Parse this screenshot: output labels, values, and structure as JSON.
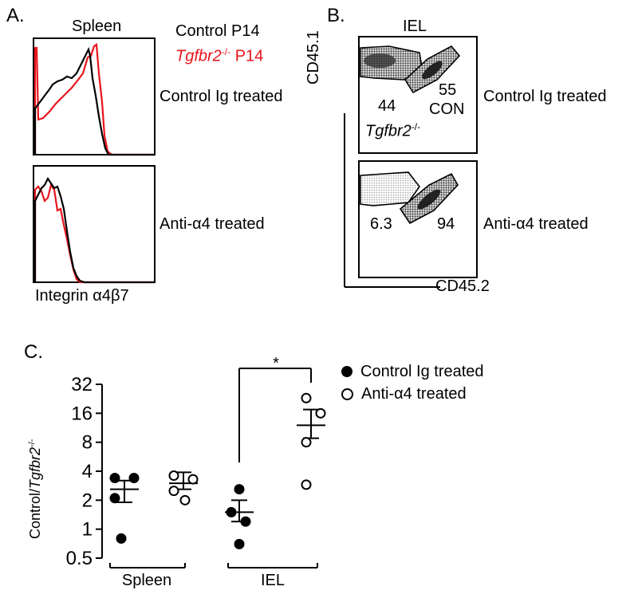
{
  "panel_a": {
    "letter": "A.",
    "title": "Spleen",
    "legend_control": "Control P14",
    "legend_ko_gene": "Tgfbr2",
    "legend_ko_sup": "-/-",
    "legend_ko_suffix": " P14",
    "row1_label": "Control Ig treated",
    "row2_label": "Anti-α4 treated",
    "xlabel": "Integrin α4β7",
    "colors": {
      "control": "#000000",
      "ko": "#e8141b"
    }
  },
  "panel_b": {
    "letter": "B.",
    "title": "IEL",
    "ylabel": "CD45.1",
    "xlabel": "CD45.2",
    "top": {
      "ko_pct": "44",
      "con_pct": "55",
      "con_label": "CON",
      "ko_gene": "Tgfbr2",
      "ko_sup": "-/-",
      "row_label": "Control Ig treated"
    },
    "bottom": {
      "ko_pct": "6.3",
      "con_pct": "94",
      "row_label": "Anti-α4 treated"
    }
  },
  "panel_c": {
    "letter": "C.",
    "ylabel_prefix": "Control/",
    "ylabel_gene": "Tgfbr2",
    "ylabel_sup": "-/-",
    "significance": "*",
    "legend": [
      {
        "label": "Control Ig treated",
        "marker": "filled-circle"
      },
      {
        "label": "Anti-α4 treated",
        "marker": "open-circle"
      }
    ]
  },
  "chart_data": {
    "type": "scatter",
    "yscale": "log2",
    "ylim": [
      0.5,
      32
    ],
    "yticks": [
      "0.5",
      "1",
      "2",
      "4",
      "8",
      "16",
      "32"
    ],
    "yticks_values": [
      0.5,
      1,
      2,
      4,
      8,
      16,
      32
    ],
    "groups": [
      "Spleen",
      "IEL"
    ],
    "series": [
      {
        "name": "Control Ig treated",
        "group": "Spleen",
        "filled": true,
        "points": [
          3.4,
          3.4,
          2.1,
          0.8
        ],
        "mean": 2.6,
        "sem": [
          1.9,
          3.2
        ]
      },
      {
        "name": "Anti-α4 treated",
        "group": "Spleen",
        "filled": false,
        "points": [
          3.6,
          3.3,
          2.5,
          2.0
        ],
        "mean": 3.0,
        "sem": [
          2.6,
          3.9
        ]
      },
      {
        "name": "Control Ig treated",
        "group": "IEL",
        "filled": true,
        "points": [
          2.6,
          1.5,
          1.2,
          0.7
        ],
        "mean": 1.5,
        "sem": [
          1.2,
          2.0
        ]
      },
      {
        "name": "Anti-α4 treated",
        "group": "IEL",
        "filled": false,
        "points": [
          23,
          16,
          8,
          2.9
        ],
        "mean": 12,
        "sem": [
          8.8,
          17.5
        ]
      }
    ]
  }
}
